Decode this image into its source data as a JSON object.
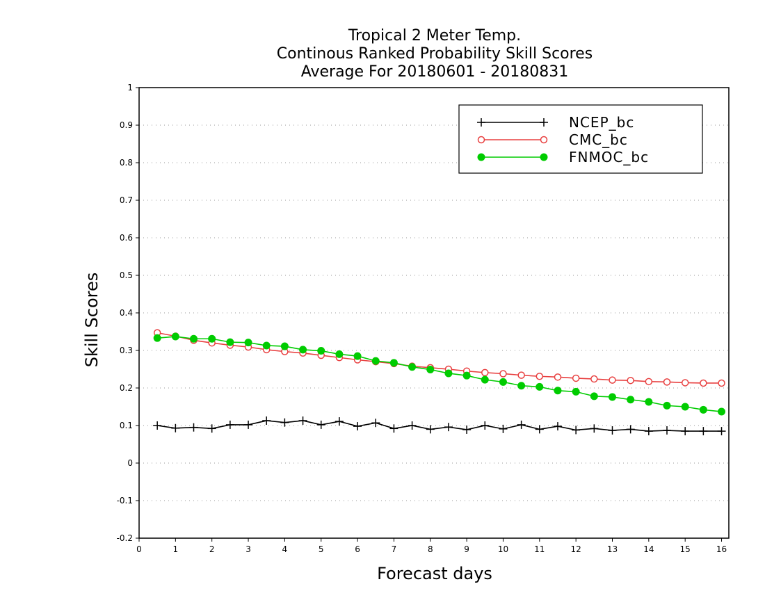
{
  "chart_data": {
    "type": "line",
    "title_lines": [
      "Tropical 2 Meter Temp.",
      "Continous Ranked Probability Skill Scores",
      "Average For 20180601 - 20180831"
    ],
    "xlabel": "Forecast days",
    "ylabel": "Skill Scores",
    "xlim": [
      0,
      16.2
    ],
    "ylim": [
      -0.2,
      1
    ],
    "x_ticks": [
      0,
      1,
      2,
      3,
      4,
      5,
      6,
      7,
      8,
      9,
      10,
      11,
      12,
      13,
      14,
      15,
      16
    ],
    "x_tick_labels": [
      "0",
      "1",
      "2",
      "3",
      "4",
      "5",
      "6",
      "7",
      "8",
      "9",
      "10",
      "11",
      "12",
      "13",
      "14",
      "15",
      "16"
    ],
    "y_ticks": [
      -0.2,
      -0.1,
      0,
      0.1,
      0.2,
      0.3,
      0.4,
      0.5,
      0.6,
      0.7,
      0.8,
      0.9,
      1
    ],
    "y_tick_labels": [
      "-0.2",
      "-0.1",
      "0",
      "0.1",
      "0.2",
      "0.3",
      "0.4",
      "0.5",
      "0.6",
      "0.7",
      "0.8",
      "0.9",
      "1"
    ],
    "grid": "horizontal dotted",
    "legend_placement": "top-right",
    "x": [
      0.5,
      1,
      1.5,
      2,
      2.5,
      3,
      3.5,
      4,
      4.5,
      5,
      5.5,
      6,
      6.5,
      7,
      7.5,
      8,
      8.5,
      9,
      9.5,
      10,
      10.5,
      11,
      11.5,
      12,
      12.5,
      13,
      13.5,
      14,
      14.5,
      15,
      15.5,
      16
    ],
    "series": [
      {
        "name": "NCEP_bc",
        "color": "#000000",
        "marker": "plus",
        "values": [
          0.1,
          0.093,
          0.095,
          0.092,
          0.102,
          0.102,
          0.113,
          0.108,
          0.113,
          0.102,
          0.111,
          0.098,
          0.107,
          0.092,
          0.1,
          0.09,
          0.096,
          0.089,
          0.1,
          0.091,
          0.102,
          0.09,
          0.098,
          0.088,
          0.092,
          0.087,
          0.09,
          0.085,
          0.087,
          0.085,
          0.085,
          0.085
        ]
      },
      {
        "name": "CMC_bc",
        "color": "#e84040",
        "marker": "open-circle",
        "values": [
          0.347,
          0.338,
          0.327,
          0.32,
          0.314,
          0.309,
          0.302,
          0.297,
          0.293,
          0.287,
          0.281,
          0.275,
          0.27,
          0.265,
          0.258,
          0.254,
          0.25,
          0.245,
          0.241,
          0.238,
          0.234,
          0.231,
          0.229,
          0.226,
          0.224,
          0.221,
          0.22,
          0.217,
          0.216,
          0.214,
          0.213,
          0.213
        ]
      },
      {
        "name": "FNMOC_bc",
        "color": "#00cc00",
        "marker": "filled-circle",
        "values": [
          0.333,
          0.337,
          0.331,
          0.331,
          0.322,
          0.321,
          0.313,
          0.311,
          0.302,
          0.299,
          0.29,
          0.285,
          0.272,
          0.267,
          0.256,
          0.249,
          0.239,
          0.233,
          0.222,
          0.216,
          0.206,
          0.203,
          0.193,
          0.19,
          0.178,
          0.176,
          0.169,
          0.163,
          0.153,
          0.15,
          0.142,
          0.137
        ]
      }
    ]
  }
}
